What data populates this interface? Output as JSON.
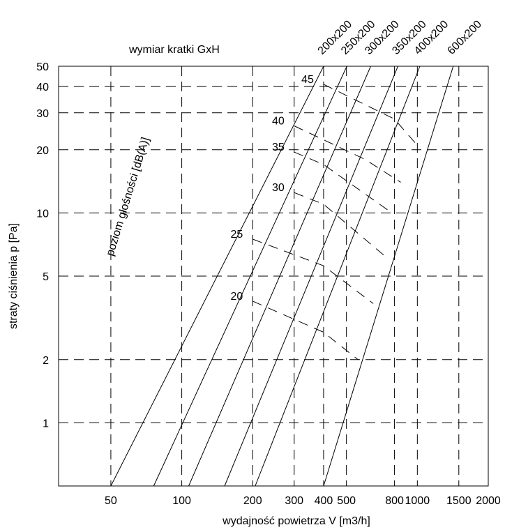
{
  "chart_data": {
    "type": "line",
    "x_scale": "log",
    "y_scale": "log",
    "xlim": [
      30,
      2000
    ],
    "ylim": [
      0.5,
      50
    ],
    "xlabel": "wydajność powietrza  V [m3/h]",
    "ylabel": "straty ciśnienia  p [Pa]",
    "top_label": "wymiar kratki GxH",
    "noise_axis_label": "poziom głośności [dB(A)]",
    "grid": "dashed",
    "x_ticks": [
      {
        "value": 50,
        "label": "50"
      },
      {
        "value": 100,
        "label": "100"
      },
      {
        "value": 200,
        "label": "200"
      },
      {
        "value": 300,
        "label": "300"
      },
      {
        "value": 400,
        "label": "400"
      },
      {
        "value": 500,
        "label": "500"
      },
      {
        "value": 800,
        "label": "800"
      },
      {
        "value": 1000,
        "label": "1000"
      },
      {
        "value": 1500,
        "label": "1500"
      },
      {
        "value": 2000,
        "label": "2000"
      }
    ],
    "y_ticks": [
      {
        "value": 1,
        "label": "1"
      },
      {
        "value": 2,
        "label": "2"
      },
      {
        "value": 5,
        "label": "5"
      },
      {
        "value": 10,
        "label": "10"
      },
      {
        "value": 20,
        "label": "20"
      },
      {
        "value": 30,
        "label": "30"
      },
      {
        "value": 40,
        "label": "40"
      },
      {
        "value": 50,
        "label": "50"
      }
    ],
    "series": [
      {
        "name": "200x200",
        "points": [
          [
            50,
            0.5
          ],
          [
            400,
            50
          ]
        ]
      },
      {
        "name": "250x200",
        "points": [
          [
            76,
            0.5
          ],
          [
            502,
            50
          ]
        ]
      },
      {
        "name": "300x200",
        "points": [
          [
            107,
            0.5
          ],
          [
            634,
            50
          ]
        ]
      },
      {
        "name": "350x200",
        "points": [
          [
            152,
            0.5
          ],
          [
            827,
            50
          ]
        ]
      },
      {
        "name": "400x200",
        "points": [
          [
            205,
            0.5
          ],
          [
            1025,
            50
          ]
        ]
      },
      {
        "name": "600x200",
        "points": [
          [
            400,
            0.5
          ],
          [
            1420,
            50
          ]
        ]
      }
    ],
    "noise_curves": [
      {
        "label": "45",
        "points": [
          [
            400,
            41
          ],
          [
            800,
            28
          ],
          [
            1000,
            21
          ]
        ]
      },
      {
        "label": "40",
        "points": [
          [
            300,
            26
          ],
          [
            600,
            18
          ],
          [
            850,
            14
          ]
        ]
      },
      {
        "label": "35",
        "points": [
          [
            300,
            19.5
          ],
          [
            400,
            17
          ],
          [
            780,
            10
          ]
        ]
      },
      {
        "label": "30",
        "points": [
          [
            300,
            12.5
          ],
          [
            400,
            11
          ],
          [
            720,
            6.3
          ]
        ]
      },
      {
        "label": "25",
        "points": [
          [
            200,
            7.5
          ],
          [
            400,
            5.6
          ],
          [
            650,
            3.7
          ]
        ]
      },
      {
        "label": "20",
        "points": [
          [
            200,
            3.8
          ],
          [
            400,
            2.7
          ],
          [
            560,
            2
          ]
        ]
      }
    ]
  }
}
